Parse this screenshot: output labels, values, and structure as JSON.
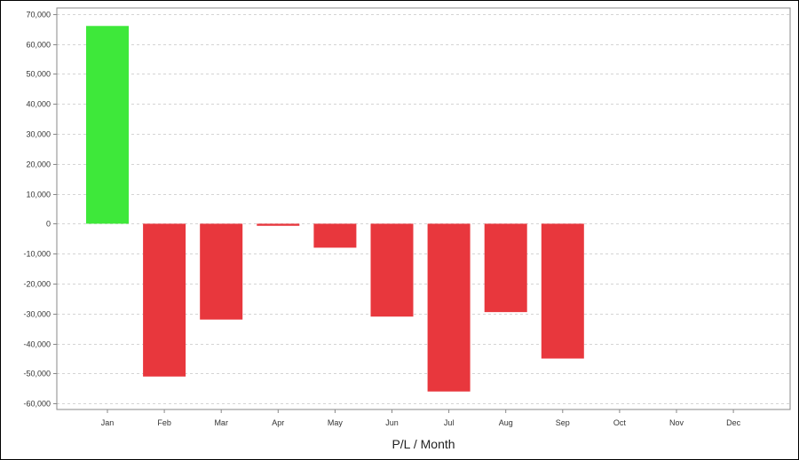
{
  "chart_data": {
    "type": "bar",
    "title": "",
    "xlabel": "P/L / Month",
    "ylabel": "",
    "categories": [
      "Jan",
      "Feb",
      "Mar",
      "Apr",
      "May",
      "Jun",
      "Jul",
      "Aug",
      "Sep",
      "Oct",
      "Nov",
      "Dec"
    ],
    "values": [
      66000,
      -51000,
      -32000,
      -700,
      -8000,
      -31000,
      -56000,
      -29500,
      -45000,
      null,
      null,
      null
    ],
    "ylim": [
      -62000,
      72000
    ],
    "yticks": [
      70000,
      60000,
      50000,
      40000,
      30000,
      20000,
      10000,
      0,
      -10000,
      -20000,
      -30000,
      -40000,
      -50000,
      -60000
    ],
    "ytick_labels": [
      "70,000",
      "60,000",
      "50,000",
      "40,000",
      "30,000",
      "20,000",
      "10,000",
      "0",
      "-10,000",
      "-20,000",
      "-30,000",
      "-40,000",
      "-50,000",
      "-60,000"
    ],
    "grid": true,
    "grid_style": "dashed-horizontal",
    "colors": {
      "positive": "#3ee83a",
      "negative": "#e8373d",
      "grid": "#d4d4d4",
      "axis": "#888888"
    }
  }
}
